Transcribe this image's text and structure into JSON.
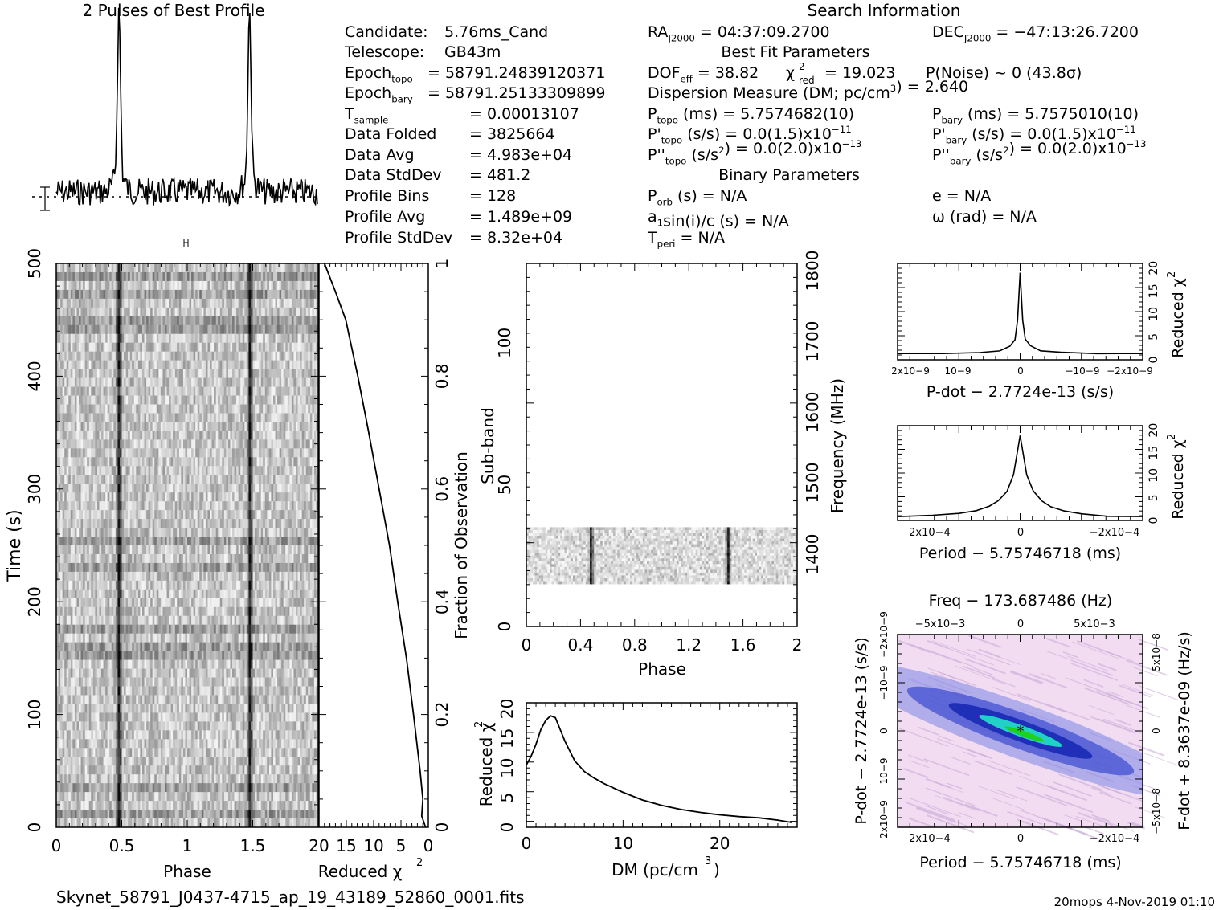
{
  "header": {
    "profile_title": "2 Pulses of Best Profile",
    "search_title": "Search Information"
  },
  "info_left": [
    {
      "label": "Candidate:",
      "value": "5.76ms_Cand"
    },
    {
      "label": "Telescope:",
      "value": "GB43m"
    },
    {
      "label": "Epoch",
      "sub": "topo",
      "value": "= 58791.24839120371"
    },
    {
      "label": "Epoch",
      "sub": "bary",
      "value": "= 58791.25133309899"
    },
    {
      "label": "T",
      "sub": "sample",
      "value": "=   0.00013107"
    },
    {
      "label": "Data Folded",
      "value": "=   3825664"
    },
    {
      "label": "Data Avg",
      "value": "=   4.983e+04"
    },
    {
      "label": "Data StdDev",
      "value": "=   481.2"
    },
    {
      "label": "Profile Bins",
      "value": "=   128"
    },
    {
      "label": "Profile Avg",
      "value": "=   1.489e+09"
    },
    {
      "label": "Profile StdDev",
      "value": "=   8.32e+04"
    }
  ],
  "info_mid": {
    "ra": "RA",
    "ra_sub": "J2000",
    "ra_value": "= 04:37:09.2700",
    "best_fit": "Best Fit Parameters",
    "dof": "DOF",
    "dof_sub": "eff",
    "dof_value": "= 38.82",
    "chi": "χ",
    "chi_sup": "2",
    "chi_sub": "red",
    "chi_value": "= 19.023",
    "pnoise": "P(Noise) ~ 0    (43.8σ)",
    "dm_line_a": "Dispersion Measure (DM; pc/cm",
    "dm_line_sup": "3",
    "dm_line_b": ") = 2.640",
    "ptopo": "P",
    "ptopo_sub": "topo",
    "ptopo_value": "(ms) =  5.7574682(10)",
    "pdtopo": "P'",
    "pdtopo_sub": "topo",
    "pdtopo_value": "(s/s) = 0.0(1.5)x10",
    "pdtopo_exp": "−11",
    "pddtopo": "P''",
    "pddtopo_sub": "topo",
    "pddtopo_value": "(s/s",
    "pddtopo_value_sup": "2",
    "pddtopo_value_b": ") = 0.0(2.0)x10",
    "pddtopo_exp": "−13",
    "binary": "Binary Parameters",
    "porb": "P",
    "porb_sub": "orb",
    "porb_value": "(s) = N/A",
    "a1": "a",
    "a1_sub": "1",
    "a1_value": "sin(i)/c (s) = N/A",
    "tperi": "T",
    "tperi_sub": "peri",
    "tperi_value": "= N/A"
  },
  "info_right": {
    "dec": "DEC",
    "dec_sub": "J2000",
    "dec_value": "= −47:13:26.7200",
    "pbary": "P",
    "pbary_sub": "bary",
    "pbary_value": "(ms) =  5.7575010(10)",
    "pdbary": "P'",
    "pdbary_sub": "bary",
    "pdbary_value": "(s/s) = 0.0(1.5)x10",
    "pdbary_exp": "−11",
    "pddbary": "P''",
    "pddbary_sub": "bary",
    "pddbary_value": "(s/s",
    "pddbary_value_sup": "2",
    "pddbary_value_b": ") = 0.0(2.0)x10",
    "pddbary_exp": "−13",
    "ecc": "e = N/A",
    "omega": "ω (rad) = N/A"
  },
  "footer": {
    "filename": "Skynet_58791_J0437-4715_ap_19_43189_52860_0001.fits",
    "stamp": "20mops  4-Nov-2019 01:10"
  },
  "colors": {
    "ink": "#000000",
    "grey_dark": "#1a1a1a",
    "chi_map_light": "#f1dcf2",
    "chi_map_blue": "#1f2fb8",
    "chi_map_cyan": "#22d0c8",
    "chi_map_green": "#20d020"
  },
  "chart_data": [
    {
      "id": "profile",
      "type": "line",
      "title": "2 Pulses of Best Profile",
      "x_range": [
        0,
        2
      ],
      "pulse_phases": [
        0.48,
        1.48
      ],
      "peak_relative": 10.0,
      "noise_level": 0.0
    },
    {
      "id": "time_phase",
      "type": "heatmap",
      "xlabel": "Phase",
      "ylabel": "Time (s)",
      "x_ticks": [
        "0",
        "0.5",
        "1",
        "1.5"
      ],
      "y_ticks": [
        "0",
        "100",
        "200",
        "300",
        "400",
        "500"
      ],
      "xlim": [
        0,
        2
      ],
      "ylim": [
        0,
        500
      ],
      "pulse_phases": [
        0.48,
        1.48
      ]
    },
    {
      "id": "time_chi2",
      "type": "line",
      "xlabel": "Reduced χ2",
      "ylabel": "Fraction of Observation",
      "x_ticks": [
        "20",
        "15",
        "10",
        "5",
        "0"
      ],
      "y_ticks": [
        "0",
        "0.2",
        "0.4",
        "0.6",
        "0.8",
        "1"
      ],
      "xlim": [
        20,
        0
      ],
      "ylim": [
        0,
        1
      ],
      "fraction": [
        0,
        0.02,
        0.05,
        0.1,
        0.2,
        0.3,
        0.4,
        0.5,
        0.6,
        0.7,
        0.8,
        0.9,
        0.95,
        1.0
      ],
      "chi2": [
        0.5,
        1.2,
        1.0,
        1.5,
        2.7,
        4.0,
        5.6,
        7.1,
        9.0,
        10.9,
        12.9,
        15.1,
        17.0,
        19.0
      ]
    },
    {
      "id": "subband_phase",
      "type": "heatmap",
      "xlabel": "Phase",
      "ylabel": "Sub-band",
      "y2label": "Frequency (MHz)",
      "x_ticks": [
        "0",
        "0.4",
        "0.8",
        "1.2",
        "1.6",
        "2"
      ],
      "y_ticks": [
        "0",
        "50",
        "100"
      ],
      "y2_ticks": [
        "1400",
        "1500",
        "1600",
        "1700",
        "1800"
      ],
      "xlim": [
        0,
        2
      ],
      "ylim": [
        0,
        128
      ],
      "band_rows": [
        15,
        35
      ],
      "pulse_phases": [
        0.48,
        1.49
      ]
    },
    {
      "id": "dm_chi2",
      "type": "line",
      "xlabel": "DM (pc/cm3)",
      "ylabel": "Reduced χ2",
      "x_ticks": [
        "0",
        "10",
        "20"
      ],
      "y_ticks": [
        "0",
        "5",
        "10",
        "15",
        "20"
      ],
      "xlim": [
        0,
        28
      ],
      "ylim": [
        0,
        21
      ],
      "x": [
        0,
        0.5,
        1,
        1.5,
        2,
        2.5,
        3,
        3.5,
        4,
        5,
        6,
        7,
        8,
        10,
        12,
        14,
        16,
        18,
        20,
        22,
        24,
        26,
        27.5
      ],
      "y": [
        10.5,
        12,
        14,
        16.5,
        18,
        18.8,
        18.5,
        16.5,
        14.5,
        11.2,
        9.4,
        8.3,
        7.4,
        5.9,
        4.6,
        3.7,
        3.0,
        2.5,
        2.1,
        1.8,
        1.6,
        1.2,
        0.8
      ]
    },
    {
      "id": "pdot_chi2",
      "type": "line",
      "xlabel": "P-dot − 2.7724e-13 (s/s)",
      "ylabel": "Reduced χ2",
      "x_ticks": [
        "2x10−9",
        "10−9",
        "0",
        "−10−9",
        "−2x10−9"
      ],
      "y_ticks": [
        "0",
        "5",
        "10",
        "15",
        "20"
      ],
      "xlim": [
        2.4e-09,
        -2.4e-09
      ],
      "ylim": [
        0,
        21
      ],
      "x": [
        2.4e-09,
        1.5e-09,
        8e-10,
        4e-10,
        2e-10,
        1e-10,
        5e-11,
        0,
        -5e-11,
        -1e-10,
        -2e-10,
        -4e-10,
        -8e-10,
        -1.5e-09,
        -2.4e-09
      ],
      "y": [
        1.4,
        1.5,
        1.5,
        2.0,
        3.0,
        4.5,
        8.5,
        19.0,
        8.5,
        4.5,
        3.0,
        2.0,
        1.5,
        1.5,
        1.4
      ]
    },
    {
      "id": "period_chi2",
      "type": "line",
      "xlabel": "Period − 5.75746718 (ms)",
      "ylabel": "Reduced χ2",
      "x_ticks": [
        "2x10−4",
        "0",
        "−2x10−4"
      ],
      "y_ticks": [
        "0",
        "5",
        "10",
        "15",
        "20"
      ],
      "xlim": [
        0.00028,
        -0.00028
      ],
      "ylim": [
        0,
        21
      ],
      "x": [
        0.00028,
        0.0002,
        0.00014,
        0.0001,
        7e-05,
        5e-05,
        3e-05,
        1.5e-05,
        0,
        -1.5e-05,
        -3e-05,
        -5e-05,
        -7e-05,
        -0.0001,
        -0.00014,
        -0.0002,
        -0.00028
      ],
      "y": [
        0.7,
        1.0,
        1.4,
        2.0,
        3.0,
        4.4,
        6.6,
        10.0,
        19.0,
        10.0,
        6.6,
        4.4,
        3.0,
        2.0,
        1.4,
        1.0,
        0.7
      ]
    },
    {
      "id": "p_pdot_map",
      "type": "heatmap",
      "title": "Freq − 173.687486 (Hz)",
      "xlabel": "Period − 5.75746718 (ms)",
      "ylabel": "P-dot − 2.7724e-13 (s/s)",
      "y2label": "F-dot + 8.3637e-09 (Hz/s)",
      "x_ticks": [
        "2x10−4",
        "0",
        "−2x10−4"
      ],
      "x2_ticks": [
        "−5x10−3",
        "0",
        "5x10−3"
      ],
      "y_ticks": [
        "2x10−9",
        "10−9",
        "0",
        "−10−9",
        "−2x10−9"
      ],
      "y2_ticks": [
        "−5x10−8",
        "0",
        "5x10−8"
      ],
      "xlim": [
        0.00028,
        -0.00028
      ],
      "ylim": [
        2.4e-09,
        -2.4e-09
      ],
      "best_fit": [
        0,
        0
      ]
    }
  ]
}
